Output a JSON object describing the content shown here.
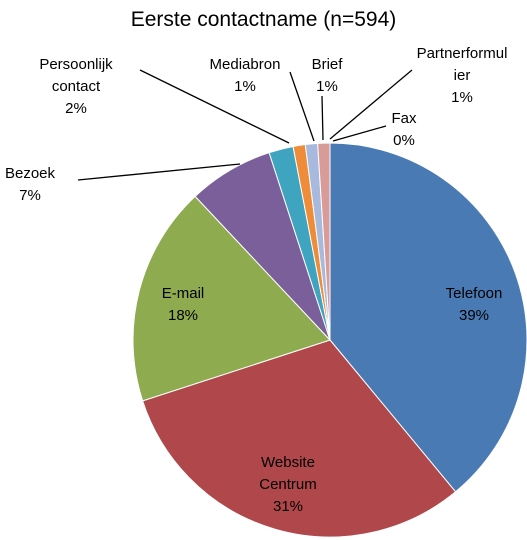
{
  "chart_data": {
    "type": "pie",
    "title": "Eerste contactname (n=594)",
    "categories": [
      "Telefoon",
      "Website Centrum",
      "E-mail",
      "Bezoek",
      "Persoonlijk contact",
      "Mediabron",
      "Brief",
      "Partnerformulier",
      "Fax"
    ],
    "values": [
      39,
      31,
      18,
      7,
      2,
      1,
      1,
      1,
      0
    ],
    "value_labels": [
      "39%",
      "31%",
      "18%",
      "7%",
      "2%",
      "1%",
      "1%",
      "1%",
      "0%"
    ],
    "colors": [
      "#4a7ab4",
      "#b0474a",
      "#8fab50",
      "#7a5f9a",
      "#3fa4bf",
      "#ef8c3a",
      "#a7b9dc",
      "#d99b98",
      "#bcd0ea"
    ]
  }
}
